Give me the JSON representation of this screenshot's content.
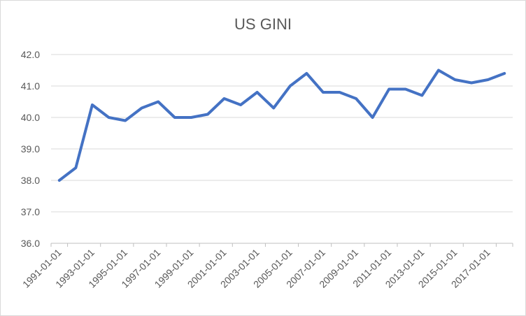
{
  "chart_data": {
    "type": "line",
    "title": "US GINI",
    "xlabel": "",
    "ylabel": "",
    "ylim": [
      36.0,
      42.0
    ],
    "y_ticks": [
      "36.0",
      "37.0",
      "38.0",
      "39.0",
      "40.0",
      "41.0",
      "42.0"
    ],
    "x_tick_labels": [
      "1991-01-01",
      "1993-01-01",
      "1995-01-01",
      "1997-01-01",
      "1999-01-01",
      "2001-01-01",
      "2003-01-01",
      "2005-01-01",
      "2007-01-01",
      "2009-01-01",
      "2011-01-01",
      "2013-01-01",
      "2015-01-01",
      "2017-01-01"
    ],
    "grid": true,
    "series": [
      {
        "color": "#4472c4",
        "x": [
          "1991-01-01",
          "1992-01-01",
          "1993-01-01",
          "1994-01-01",
          "1995-01-01",
          "1996-01-01",
          "1997-01-01",
          "1998-01-01",
          "1999-01-01",
          "2000-01-01",
          "2001-01-01",
          "2002-01-01",
          "2003-01-01",
          "2004-01-01",
          "2005-01-01",
          "2006-01-01",
          "2007-01-01",
          "2008-01-01",
          "2009-01-01",
          "2010-01-01",
          "2011-01-01",
          "2012-01-01",
          "2013-01-01",
          "2014-01-01",
          "2015-01-01",
          "2016-01-01",
          "2017-01-01",
          "2018-01-01"
        ],
        "values": [
          38.0,
          38.4,
          40.4,
          40.0,
          39.9,
          40.3,
          40.5,
          40.0,
          40.0,
          40.1,
          40.6,
          40.4,
          40.8,
          40.3,
          41.0,
          41.4,
          40.8,
          40.8,
          40.6,
          40.0,
          40.9,
          40.9,
          40.7,
          41.5,
          41.2,
          41.1,
          41.2,
          41.4
        ]
      }
    ]
  }
}
